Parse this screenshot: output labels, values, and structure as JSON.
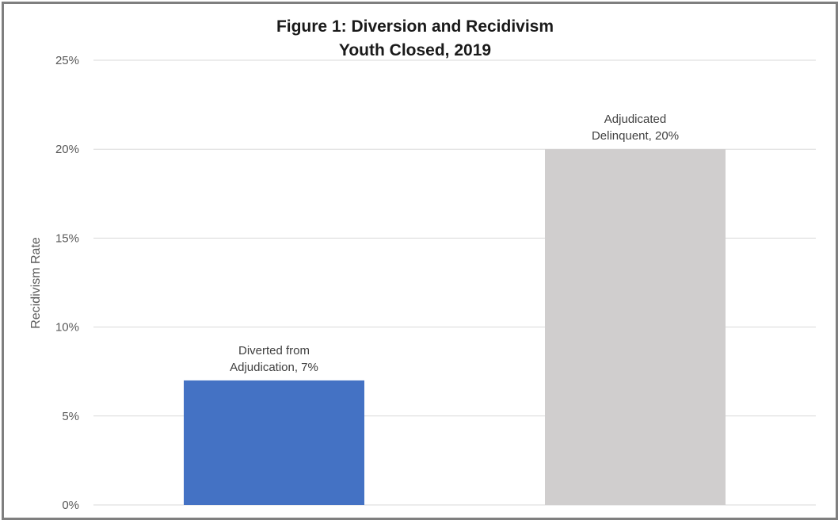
{
  "chart_data": {
    "type": "bar",
    "title": [
      "Figure 1: Diversion and Recidivism",
      "Youth Closed, 2019"
    ],
    "xlabel": "",
    "ylabel": "Recidivism Rate",
    "ylim": [
      0,
      25
    ],
    "yticks": [
      {
        "value": 0,
        "label": "0%"
      },
      {
        "value": 5,
        "label": "5%"
      },
      {
        "value": 10,
        "label": "10%"
      },
      {
        "value": 15,
        "label": "15%"
      },
      {
        "value": 20,
        "label": "20%"
      },
      {
        "value": 25,
        "label": "25%"
      }
    ],
    "grid": true,
    "legend": "none",
    "categories": [
      "Diverted from Adjudication",
      "Adjudicated Delinquent"
    ],
    "values": [
      7,
      20
    ],
    "colors": [
      "#4472c4",
      "#d0cece"
    ],
    "data_labels": [
      [
        "Diverted from",
        "Adjudication, 7%"
      ],
      [
        "Adjudicated",
        "Delinquent, 20%"
      ]
    ]
  }
}
